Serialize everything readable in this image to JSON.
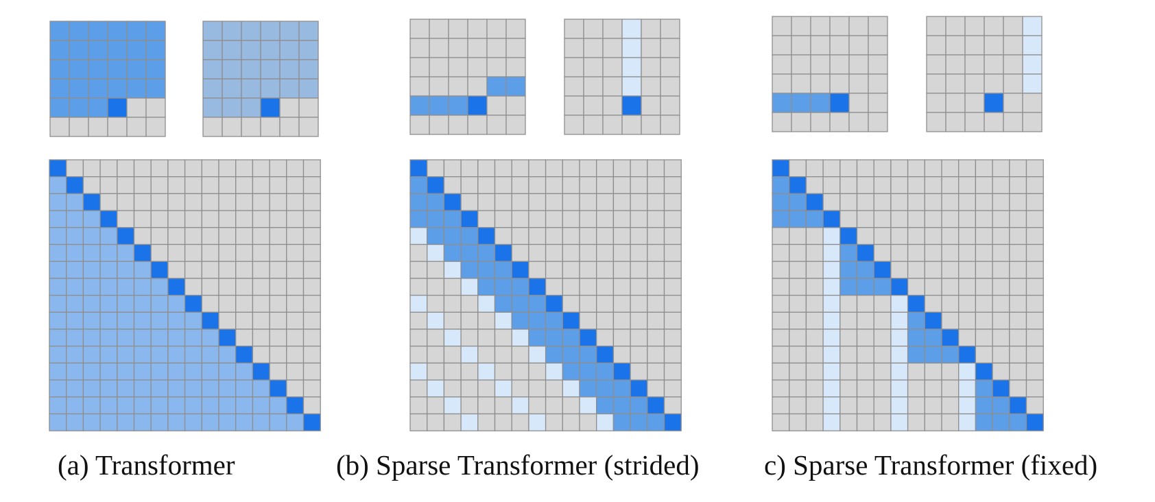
{
  "colors": {
    "background": "#ffffff",
    "empty": "#d6d6d6",
    "grid": "#8e8e8e",
    "query": "#1a73e8",
    "attended_dense": "#5d9ee8",
    "attended_dense_wide": "#8ab8ee",
    "attended_wide_light": "#98b9e0",
    "attended_stride": "#d8e8fb"
  },
  "panels": [
    {
      "caption": "(a) Transformer",
      "small_grids": [
        {
          "rows": 6,
          "cols": 6,
          "cells": [
            "AAAAAA",
            "AAAAAA",
            "AAAAAA",
            "AAAAAA",
            "AAAQ..",
            "......"
          ]
        },
        {
          "rows": 6,
          "cols": 6,
          "cells": [
            "LLLLLL",
            "LLLLLL",
            "LLLLLL",
            "LLLLLL",
            "LLLQ..",
            "......"
          ]
        }
      ],
      "matrix": {
        "size": 16,
        "pattern": "full"
      }
    },
    {
      "caption": "(b) Sparse Transformer (strided)",
      "small_grids": [
        {
          "rows": 6,
          "cols": 6,
          "cells": [
            "......",
            "......",
            "......",
            "....AA",
            "AAAQ..",
            "......"
          ]
        },
        {
          "rows": 6,
          "cols": 6,
          "cells": [
            "...S..",
            "...S..",
            "...S..",
            "...S..",
            "...Q..",
            "......"
          ]
        }
      ],
      "matrix": {
        "size": 16,
        "pattern": "strided",
        "stride": 4
      }
    },
    {
      "caption": "c) Sparse Transformer (fixed)",
      "small_grids": [
        {
          "rows": 6,
          "cols": 6,
          "cells": [
            "......",
            "......",
            "......",
            "......",
            "AAAQ..",
            "......"
          ]
        },
        {
          "rows": 6,
          "cols": 6,
          "cells": [
            ".....S",
            ".....S",
            ".....S",
            ".....S",
            "...Q..",
            "......"
          ]
        }
      ],
      "matrix": {
        "size": 16,
        "pattern": "fixed",
        "block": 4
      }
    }
  ]
}
